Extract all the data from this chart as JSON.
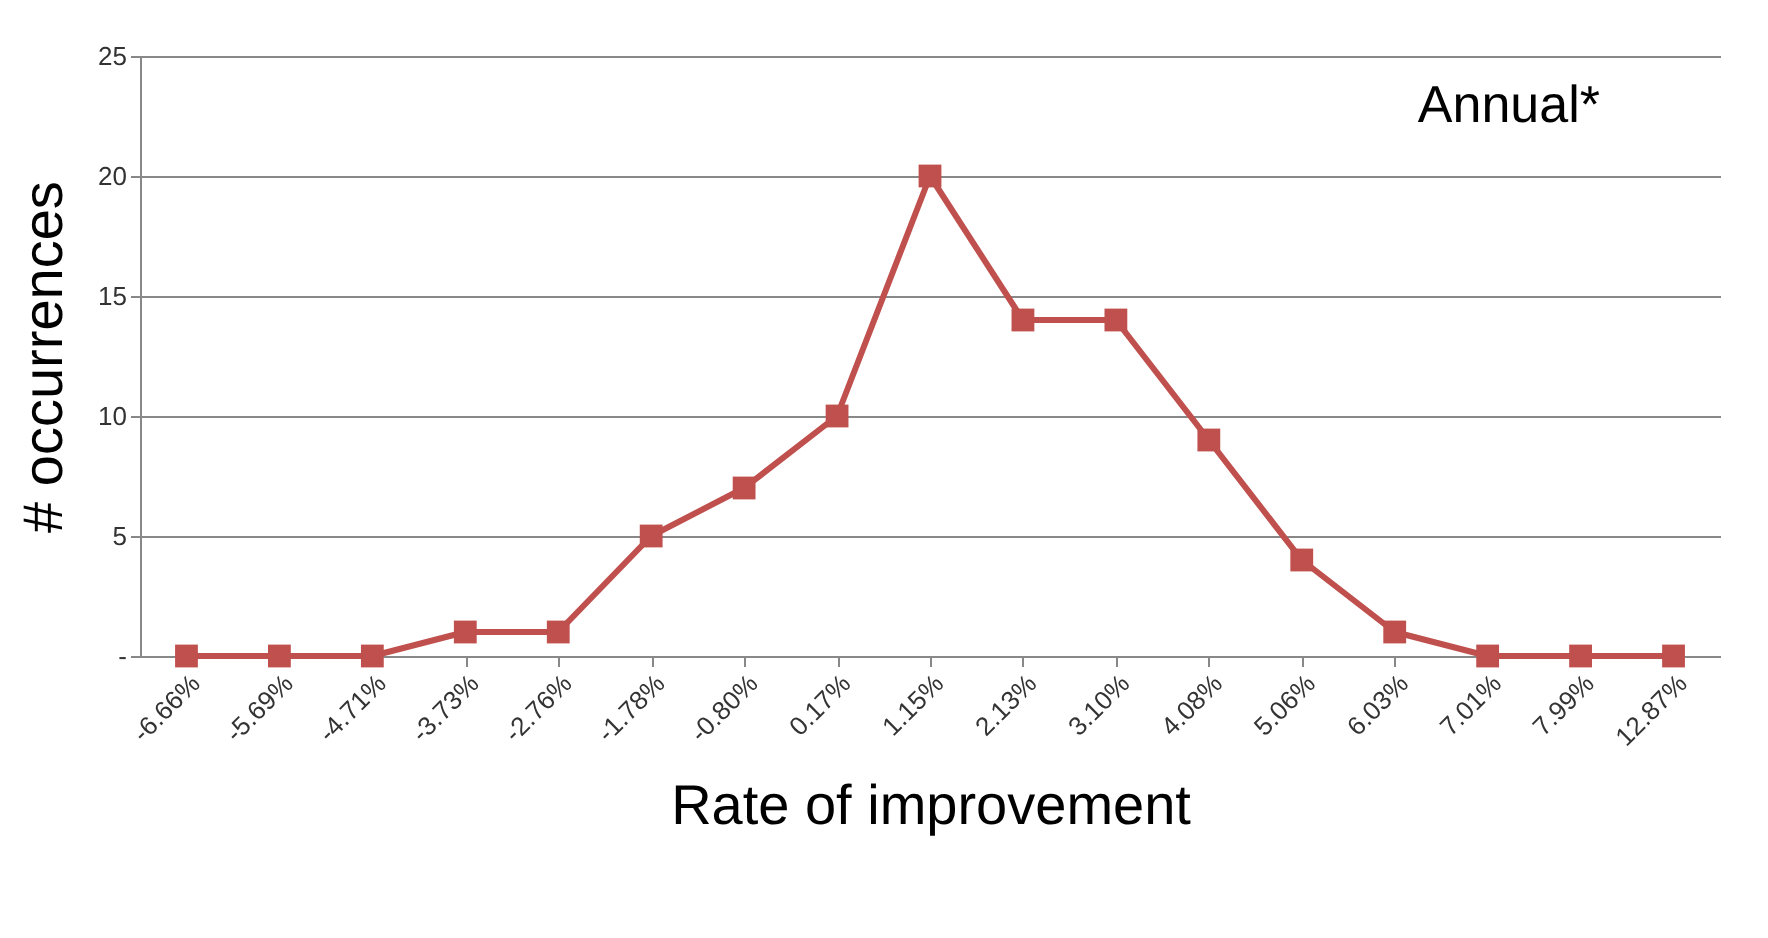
{
  "chart_data": {
    "type": "line",
    "xlabel": "Rate of improvement",
    "ylabel": "# occurrences",
    "categories": [
      "-6.66%",
      "-5.69%",
      "-4.71%",
      "-3.73%",
      "-2.76%",
      "-1.78%",
      "-0.80%",
      "0.17%",
      "1.15%",
      "2.13%",
      "3.10%",
      "4.08%",
      "5.06%",
      "6.03%",
      "7.01%",
      "7.99%",
      "12.87%"
    ],
    "series": [
      {
        "color": "#c0504d",
        "values": [
          0,
          0,
          0,
          1,
          1,
          5,
          7,
          10,
          20,
          14,
          14,
          9,
          4,
          1,
          0,
          0,
          0
        ]
      }
    ],
    "ylim": [
      0,
      25
    ],
    "yticks": [
      {
        "value": 0,
        "label": "-"
      },
      5,
      10,
      15,
      20,
      25
    ],
    "grid": "y",
    "marker": "square",
    "line_style": "solid",
    "annotations": [
      "Annual*"
    ]
  }
}
